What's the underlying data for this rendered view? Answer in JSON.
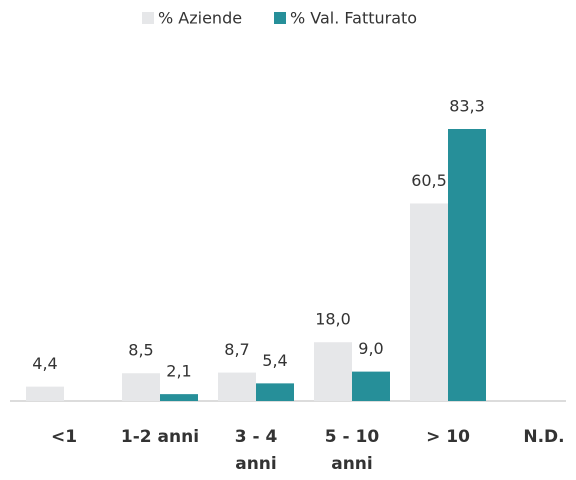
{
  "chart_data": {
    "type": "bar",
    "categories": [
      "<1",
      "1-2 anni",
      "3 - 4 anni",
      "5 - 10 anni",
      "> 10",
      "N.D."
    ],
    "series": [
      {
        "name": "% Aziende",
        "color": "#e6e7e9",
        "values": [
          4.4,
          8.5,
          8.7,
          18.0,
          60.5,
          null
        ],
        "value_labels": [
          "4,4",
          "8,5",
          "8,7",
          "18,0",
          "60,5",
          null
        ]
      },
      {
        "name": "% Val. Fatturato",
        "color": "#268f99",
        "values": [
          null,
          2.1,
          5.4,
          9.0,
          83.3,
          null
        ],
        "value_labels": [
          null,
          "2,1",
          "5,4",
          "9,0",
          "83,3",
          null
        ]
      }
    ],
    "legend": "top"
  }
}
